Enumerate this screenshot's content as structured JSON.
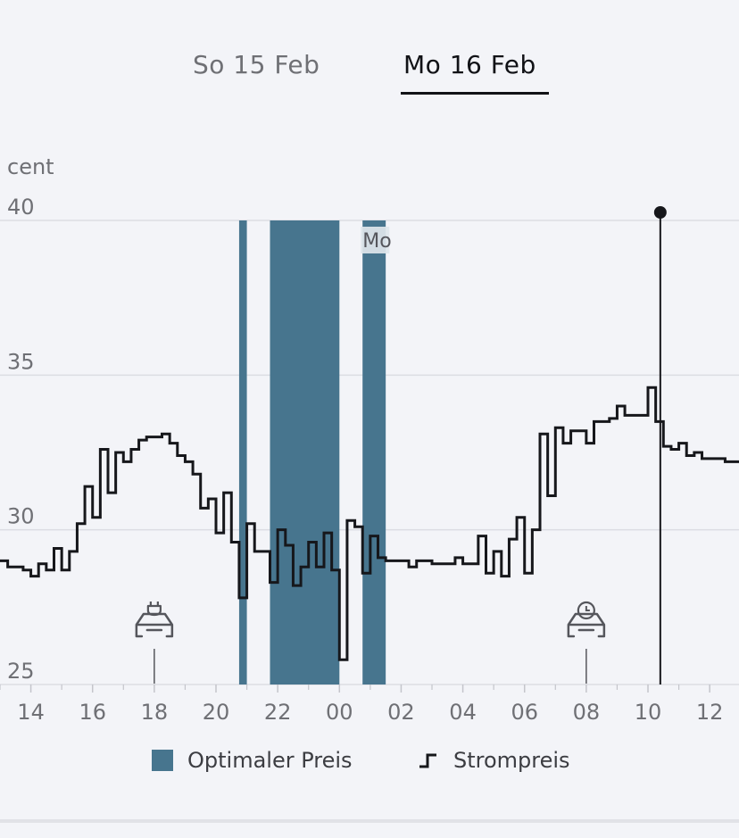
{
  "tabs": [
    {
      "label": "So 15 Feb",
      "active": false
    },
    {
      "label": "Mo 16 Feb",
      "active": true
    }
  ],
  "legend": {
    "optimal_label": "Optimaler Preis",
    "price_label": "Strompreis"
  },
  "colors": {
    "optimal": "#47758e",
    "price_line": "#16171b",
    "grid": "#dcdde3",
    "axis_text": "#6f7075"
  },
  "icons": [
    "car-plug-icon",
    "car-clock-icon"
  ],
  "chart_data": {
    "type": "line",
    "step": true,
    "ylabel": "cent",
    "ylim": [
      25,
      40
    ],
    "yticks": [
      25,
      30,
      35,
      40
    ],
    "xlim": [
      13.0,
      36.95
    ],
    "xtick_labels": [
      "14",
      "16",
      "18",
      "20",
      "22",
      "00",
      "02",
      "04",
      "06",
      "08",
      "10",
      "12"
    ],
    "day_marker_label": "Mo",
    "cursor_x": 34.4,
    "optimal_windows": [
      [
        20.75,
        21.0
      ],
      [
        21.75,
        24.0
      ],
      [
        24.75,
        25.5
      ]
    ],
    "event_markers": [
      {
        "x": 18.0,
        "icon": "car-plug-icon"
      },
      {
        "x": 32.0,
        "icon": "car-clock-icon"
      }
    ],
    "series": [
      {
        "name": "Strompreis",
        "x": [
          13.0,
          13.25,
          13.5,
          13.75,
          14.0,
          14.25,
          14.5,
          14.75,
          15.0,
          15.25,
          15.5,
          15.75,
          16.0,
          16.25,
          16.5,
          16.75,
          17.0,
          17.25,
          17.5,
          17.75,
          18.0,
          18.25,
          18.5,
          18.75,
          19.0,
          19.25,
          19.5,
          19.75,
          20.0,
          20.25,
          20.5,
          20.75,
          21.0,
          21.25,
          21.5,
          21.75,
          22.0,
          22.25,
          22.5,
          22.75,
          23.0,
          23.25,
          23.5,
          23.75,
          24.0,
          24.25,
          24.5,
          24.75,
          25.0,
          25.25,
          25.5,
          25.75,
          26.0,
          26.25,
          26.5,
          26.75,
          27.0,
          27.25,
          27.5,
          27.75,
          28.0,
          28.25,
          28.5,
          28.75,
          29.0,
          29.25,
          29.5,
          29.75,
          30.0,
          30.25,
          30.5,
          30.75,
          31.0,
          31.25,
          31.5,
          31.75,
          32.0,
          32.25,
          32.5,
          32.75,
          33.0,
          33.25,
          33.5,
          33.75,
          34.0,
          34.25,
          34.5,
          34.75,
          35.0,
          35.25,
          35.5,
          35.75,
          36.0,
          36.25,
          36.5,
          36.75
        ],
        "y": [
          29.0,
          28.8,
          28.8,
          28.7,
          28.5,
          28.9,
          28.7,
          29.4,
          28.7,
          29.3,
          30.2,
          31.4,
          30.4,
          32.6,
          31.2,
          32.5,
          32.2,
          32.6,
          32.9,
          33.0,
          33.0,
          33.1,
          32.8,
          32.4,
          32.2,
          31.8,
          30.7,
          31.0,
          29.9,
          31.2,
          29.6,
          27.8,
          30.2,
          29.3,
          29.3,
          28.3,
          30.0,
          29.5,
          28.2,
          28.8,
          29.6,
          28.8,
          29.9,
          28.7,
          25.8,
          30.3,
          30.1,
          28.6,
          29.8,
          29.1,
          29.0,
          29.0,
          29.0,
          28.8,
          29.0,
          29.0,
          28.9,
          28.9,
          28.9,
          29.1,
          28.9,
          28.9,
          29.8,
          28.6,
          29.3,
          28.5,
          29.7,
          30.4,
          28.6,
          30.0,
          33.1,
          31.1,
          33.3,
          32.8,
          33.2,
          33.2,
          32.8,
          33.5,
          33.5,
          33.6,
          34.0,
          33.7,
          33.7,
          33.7,
          34.6,
          33.5,
          32.7,
          32.6,
          32.8,
          32.4,
          32.5,
          32.3,
          32.3,
          32.3,
          32.2,
          32.2
        ]
      }
    ]
  }
}
